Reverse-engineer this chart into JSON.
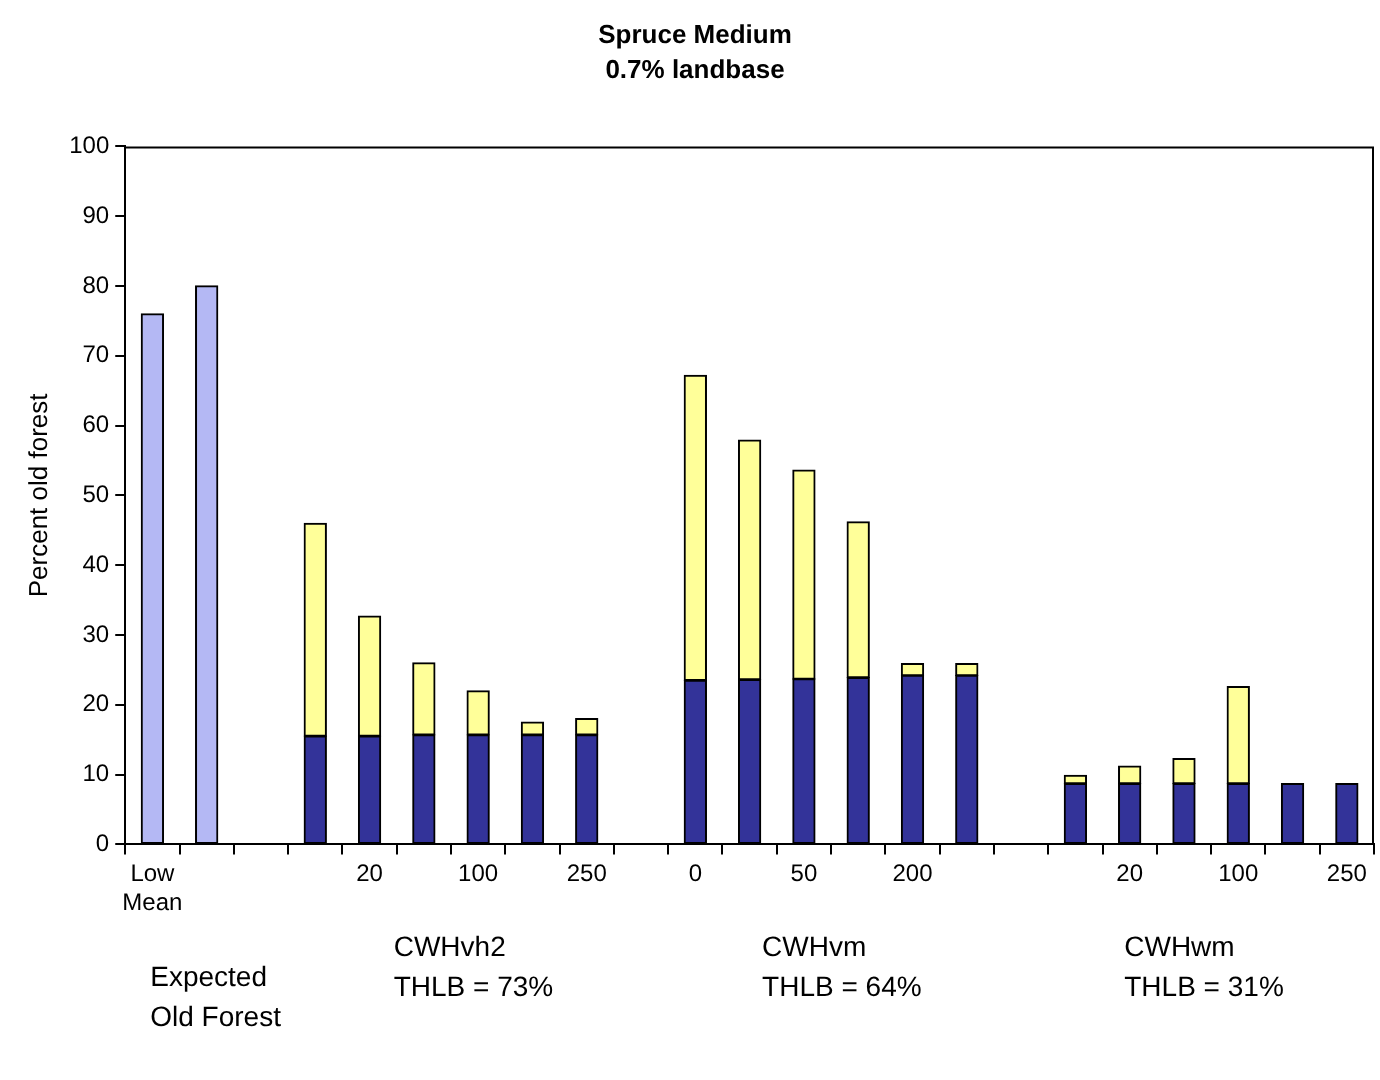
{
  "chart_data": {
    "type": "bar",
    "title": "Spruce Medium",
    "subtitle": "0.7% landbase",
    "ylabel": "Percent old forest",
    "stacked": true,
    "legend": false,
    "grid": false,
    "categories": [
      "Low Mean",
      null,
      null,
      null,
      "20",
      null,
      "100",
      null,
      "250",
      null,
      "0",
      null,
      "50",
      null,
      "200",
      null,
      null,
      null,
      "20",
      null,
      "100",
      null,
      "250"
    ],
    "series": [
      {
        "color": "#b4b8f4",
        "values": [
          76,
          80,
          null,
          null,
          null,
          null,
          null,
          null,
          null,
          null,
          null,
          null,
          null,
          null,
          null,
          null,
          null,
          null,
          null,
          null,
          null,
          null,
          null
        ]
      },
      {
        "color": "#333399",
        "values": [
          null,
          null,
          null,
          15.5,
          15.5,
          15.7,
          15.7,
          15.7,
          15.7,
          null,
          23.5,
          23.6,
          23.7,
          23.9,
          24.2,
          24.2,
          null,
          8.7,
          8.7,
          8.7,
          8.7,
          8.7,
          8.7
        ]
      },
      {
        "color": "#ffff99",
        "values": [
          null,
          null,
          null,
          30.5,
          17.2,
          10.3,
          6.3,
          1.8,
          2.3,
          null,
          43.7,
          34.3,
          29.9,
          22.3,
          1.7,
          1.7,
          null,
          1.2,
          2.5,
          3.6,
          13.9,
          null,
          null
        ]
      }
    ],
    "ylim": [
      0,
      100
    ],
    "yticks": [
      0,
      10,
      20,
      30,
      40,
      50,
      60,
      70,
      80,
      90,
      100
    ],
    "annotations": [
      "Expected Old Forest",
      "CWHvh2 THLB = 73%",
      "CWHvm THLB = 64%",
      "CWHwm THLB = 31%"
    ]
  }
}
